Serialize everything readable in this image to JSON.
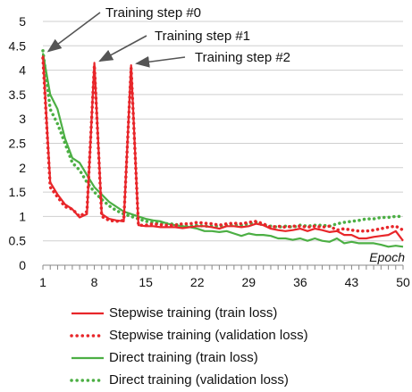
{
  "chart_data": {
    "type": "line",
    "title": "",
    "xlabel": "Epoch",
    "ylabel": "",
    "xlim": [
      1,
      50
    ],
    "ylim": [
      0,
      5
    ],
    "x_ticks": [
      1,
      8,
      15,
      22,
      29,
      36,
      43,
      50
    ],
    "y_ticks": [
      0,
      0.5,
      1,
      1.5,
      2,
      2.5,
      3,
      3.5,
      4,
      4.5,
      5
    ],
    "y_tick_labels": [
      "0",
      "0.5",
      "1",
      "1.5",
      "2",
      "2.5",
      "3",
      "3.5",
      "4",
      "4.5",
      "5"
    ],
    "grid": "horizontal",
    "legend_position": "bottom",
    "series": [
      {
        "name": "Stepwise training (train loss)",
        "color": "#e8262a",
        "style": "solid",
        "x": [
          1,
          2,
          3,
          4,
          5,
          6,
          7,
          8,
          9,
          10,
          11,
          12,
          13,
          14,
          15,
          16,
          17,
          18,
          19,
          20,
          21,
          22,
          23,
          24,
          25,
          26,
          27,
          28,
          29,
          30,
          31,
          32,
          33,
          34,
          35,
          36,
          37,
          38,
          39,
          40,
          41,
          42,
          43,
          44,
          45,
          46,
          47,
          48,
          49,
          50
        ],
        "values": [
          4.3,
          1.7,
          1.45,
          1.25,
          1.15,
          0.98,
          1.05,
          4.15,
          1.05,
          0.95,
          0.92,
          0.9,
          4.1,
          0.82,
          0.8,
          0.8,
          0.78,
          0.78,
          0.78,
          0.76,
          0.78,
          0.8,
          0.8,
          0.78,
          0.75,
          0.8,
          0.8,
          0.78,
          0.8,
          0.85,
          0.82,
          0.75,
          0.72,
          0.7,
          0.72,
          0.75,
          0.7,
          0.75,
          0.72,
          0.68,
          0.7,
          0.62,
          0.62,
          0.55,
          0.55,
          0.58,
          0.6,
          0.62,
          0.7,
          0.5
        ]
      },
      {
        "name": "Stepwise training (validation loss)",
        "color": "#e8262a",
        "style": "dotted",
        "x": [
          1,
          2,
          3,
          4,
          5,
          6,
          7,
          8,
          9,
          10,
          11,
          12,
          13,
          14,
          15,
          16,
          17,
          18,
          19,
          20,
          21,
          22,
          23,
          24,
          25,
          26,
          27,
          28,
          29,
          30,
          31,
          32,
          33,
          34,
          35,
          36,
          37,
          38,
          39,
          40,
          41,
          42,
          43,
          44,
          45,
          46,
          47,
          48,
          49,
          50
        ],
        "values": [
          4.25,
          1.6,
          1.4,
          1.2,
          1.15,
          1.0,
          1.1,
          4.1,
          1.0,
          0.92,
          0.9,
          0.92,
          4.05,
          0.82,
          0.82,
          0.85,
          0.83,
          0.82,
          0.82,
          0.85,
          0.85,
          0.88,
          0.86,
          0.85,
          0.82,
          0.85,
          0.86,
          0.85,
          0.88,
          0.9,
          0.85,
          0.78,
          0.8,
          0.78,
          0.8,
          0.8,
          0.78,
          0.8,
          0.78,
          0.8,
          0.72,
          0.75,
          0.72,
          0.7,
          0.7,
          0.72,
          0.75,
          0.78,
          0.8,
          0.72
        ]
      },
      {
        "name": "Direct training (train loss)",
        "color": "#4caf44",
        "style": "solid",
        "x": [
          1,
          2,
          3,
          4,
          5,
          6,
          7,
          8,
          9,
          10,
          11,
          12,
          13,
          14,
          15,
          16,
          17,
          18,
          19,
          20,
          21,
          22,
          23,
          24,
          25,
          26,
          27,
          28,
          29,
          30,
          31,
          32,
          33,
          34,
          35,
          36,
          37,
          38,
          39,
          40,
          41,
          42,
          43,
          44,
          45,
          46,
          47,
          48,
          49,
          50
        ],
        "values": [
          4.35,
          3.5,
          3.2,
          2.6,
          2.2,
          2.1,
          1.85,
          1.6,
          1.45,
          1.3,
          1.2,
          1.1,
          1.05,
          1.0,
          0.95,
          0.92,
          0.9,
          0.85,
          0.82,
          0.8,
          0.78,
          0.75,
          0.7,
          0.7,
          0.68,
          0.7,
          0.65,
          0.6,
          0.65,
          0.62,
          0.62,
          0.6,
          0.55,
          0.55,
          0.52,
          0.55,
          0.5,
          0.55,
          0.5,
          0.48,
          0.55,
          0.45,
          0.48,
          0.45,
          0.45,
          0.45,
          0.42,
          0.38,
          0.4,
          0.38
        ]
      },
      {
        "name": "Direct training (validation loss)",
        "color": "#4caf44",
        "style": "dotted",
        "x": [
          1,
          2,
          3,
          4,
          5,
          6,
          7,
          8,
          9,
          10,
          11,
          12,
          13,
          14,
          15,
          16,
          17,
          18,
          19,
          20,
          21,
          22,
          23,
          24,
          25,
          26,
          27,
          28,
          29,
          30,
          31,
          32,
          33,
          34,
          35,
          36,
          37,
          38,
          39,
          40,
          41,
          42,
          43,
          44,
          45,
          46,
          47,
          48,
          49,
          50
        ],
        "values": [
          4.4,
          3.2,
          2.9,
          2.5,
          2.1,
          1.95,
          1.7,
          1.5,
          1.35,
          1.22,
          1.12,
          1.05,
          1.0,
          0.95,
          0.9,
          0.88,
          0.86,
          0.85,
          0.84,
          0.8,
          0.8,
          0.82,
          0.8,
          0.8,
          0.8,
          0.82,
          0.82,
          0.82,
          0.85,
          0.88,
          0.82,
          0.8,
          0.78,
          0.8,
          0.78,
          0.82,
          0.8,
          0.82,
          0.82,
          0.8,
          0.85,
          0.88,
          0.9,
          0.92,
          0.95,
          0.95,
          0.98,
          0.98,
          1.0,
          1.0
        ]
      }
    ],
    "annotations": [
      {
        "text": "Training step #0",
        "x": 1,
        "y": 4.35
      },
      {
        "text": "Training step #1",
        "x": 8,
        "y": 4.15
      },
      {
        "text": "Training step #2",
        "x": 13,
        "y": 4.1
      }
    ]
  }
}
